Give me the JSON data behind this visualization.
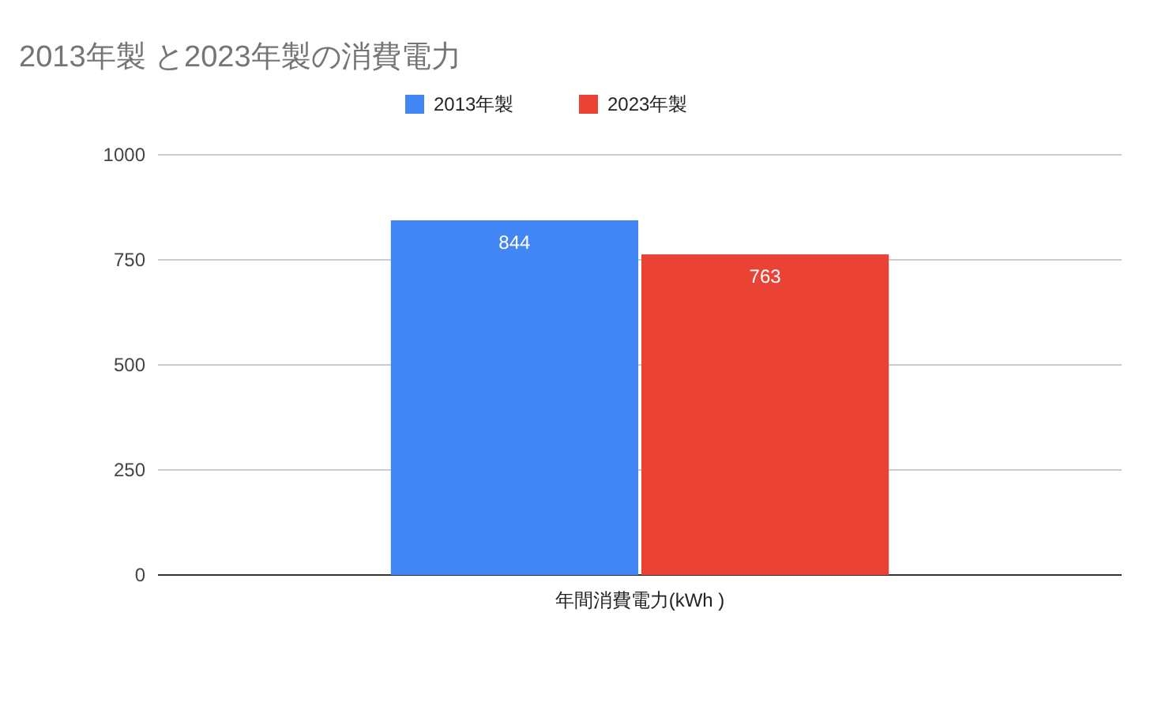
{
  "chart_data": {
    "type": "bar",
    "title": "2013年製 と2023年製の消費電力",
    "categories": [
      "年間消費電力(kWh )"
    ],
    "series": [
      {
        "name": "2013年製",
        "color": "#4285f4",
        "values": [
          844
        ]
      },
      {
        "name": "2023年製",
        "color": "#ea4335",
        "values": [
          763
        ]
      }
    ],
    "ylim": [
      0,
      1000
    ],
    "yticks": [
      0,
      250,
      500,
      750,
      1000
    ],
    "grid": "y",
    "legend": "top",
    "data_labels": true
  }
}
